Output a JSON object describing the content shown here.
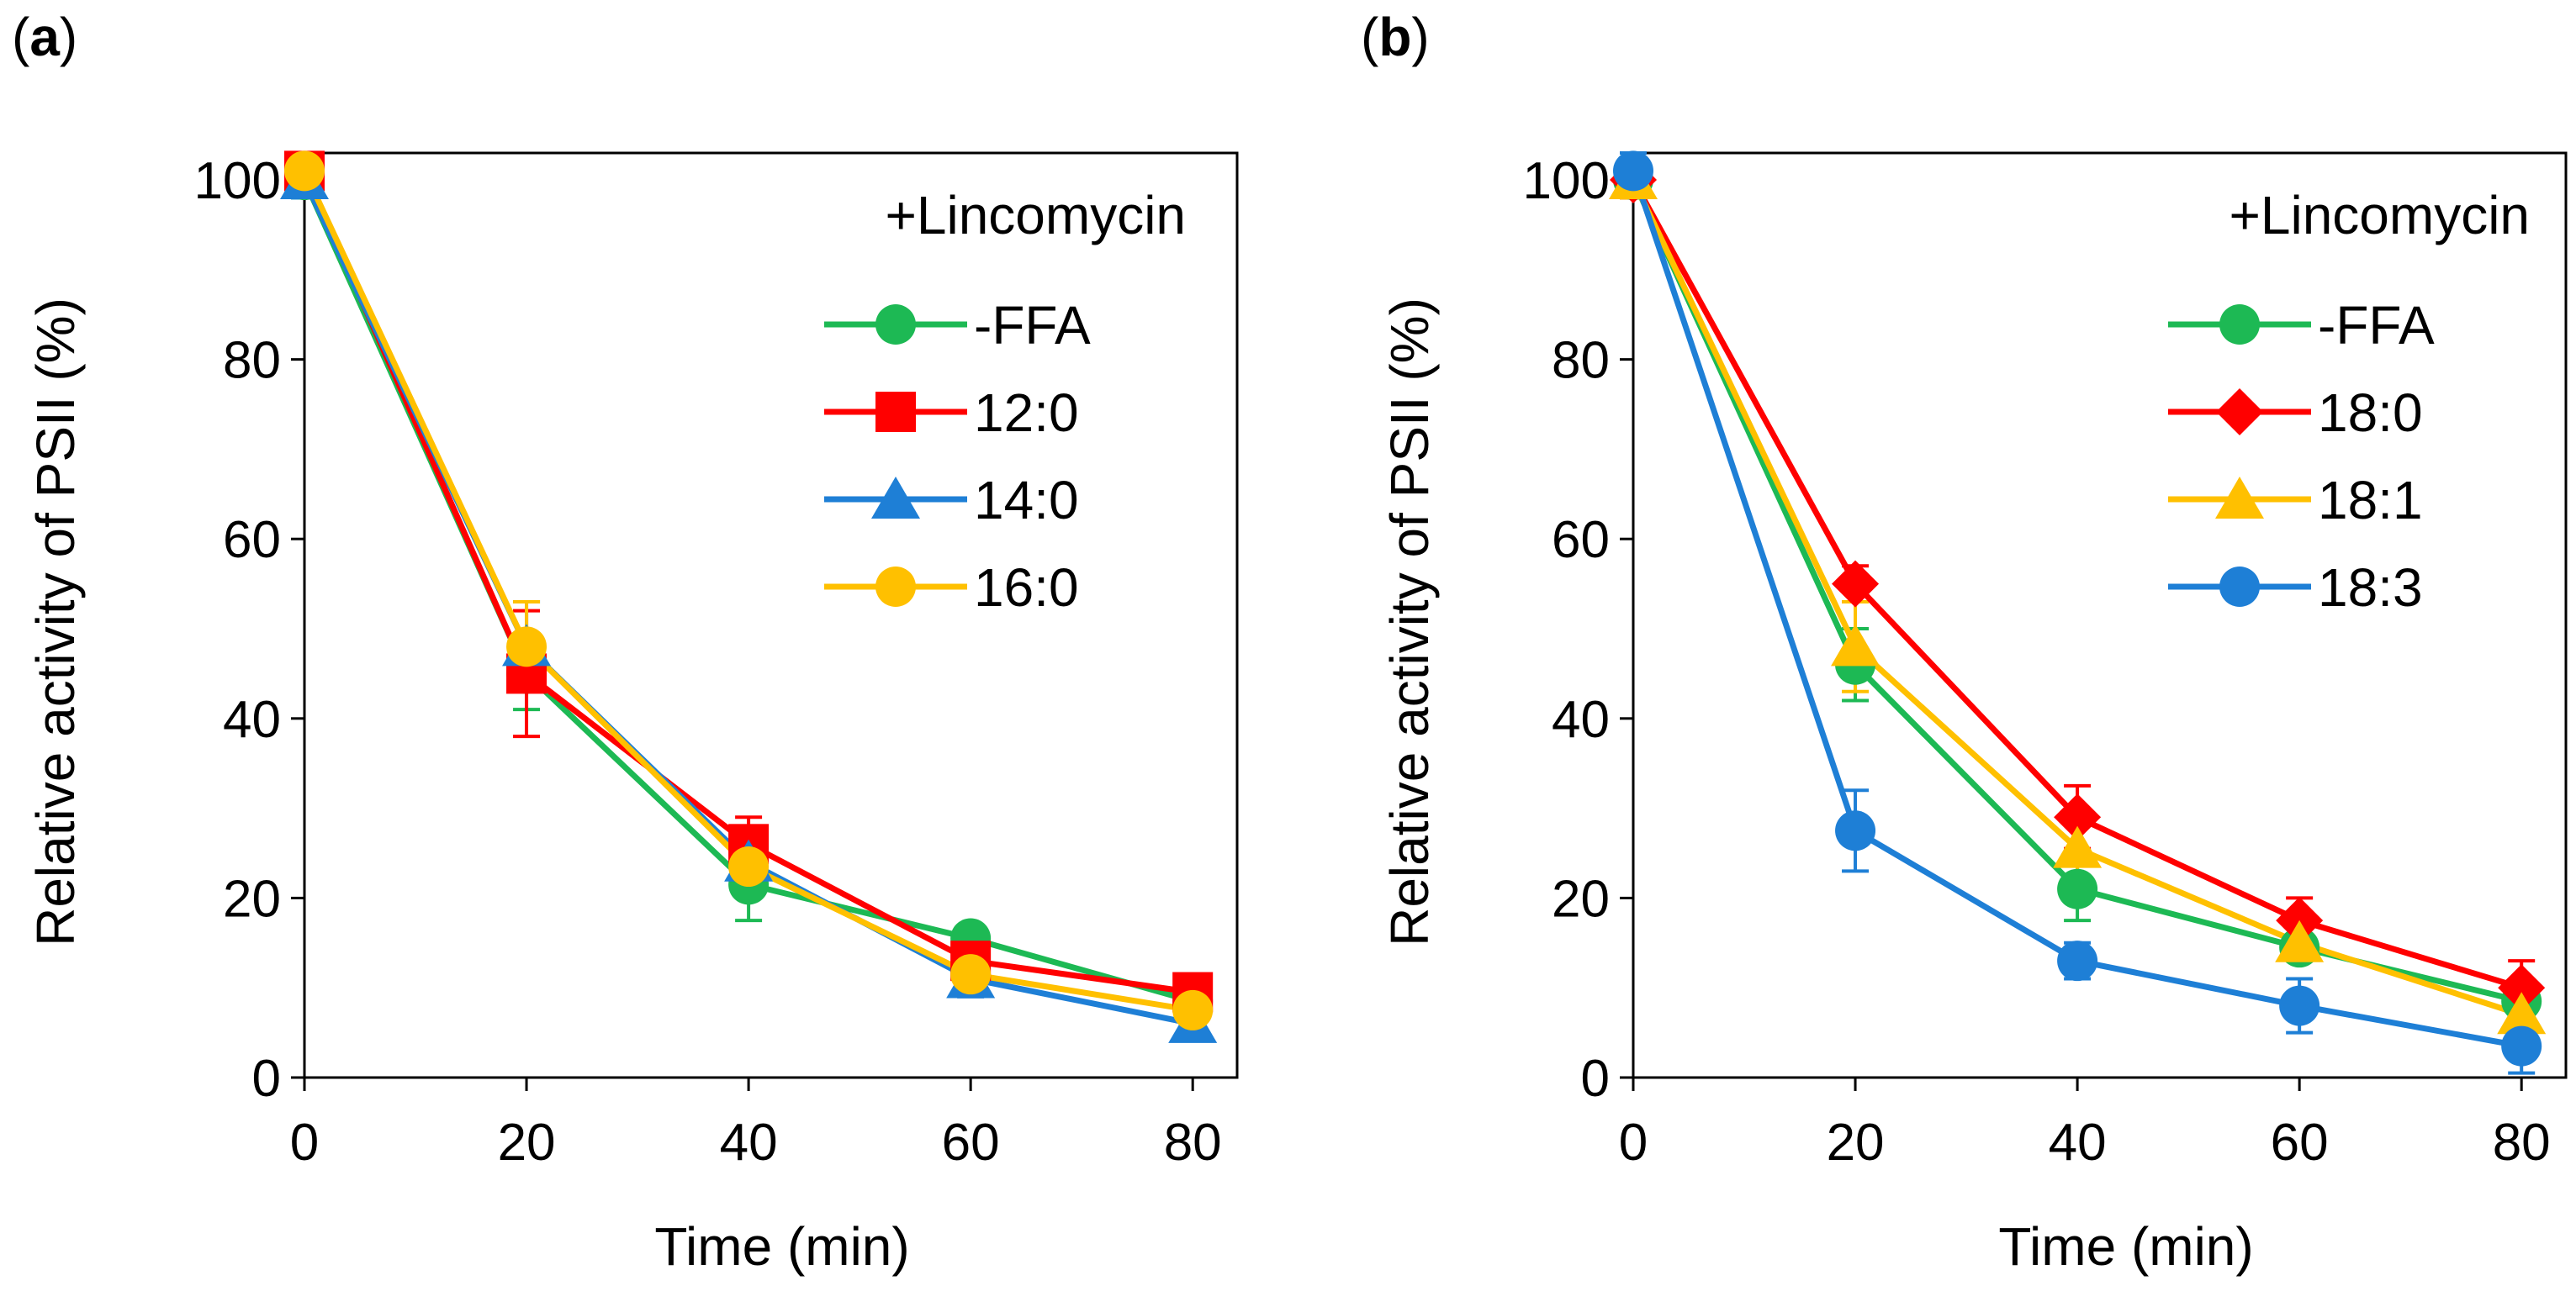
{
  "chart_data": [
    {
      "panel_label": "(a)",
      "panel_letter": "a",
      "type": "line",
      "annotation": "+Lincomycin",
      "xlabel": "Time (min)",
      "ylabel": "Relative activity of PSII (%)",
      "x": [
        0,
        20,
        40,
        60,
        80
      ],
      "x_ticks": [
        "0",
        "20",
        "40",
        "60",
        "80"
      ],
      "y_ticks": [
        "0",
        "20",
        "40",
        "60",
        "80",
        "100"
      ],
      "xlim": [
        0,
        84
      ],
      "ylim": [
        0,
        103
      ],
      "grid": false,
      "legend_position": "top-right",
      "series": [
        {
          "name": "-FFA",
          "color": "#1db954",
          "marker": "circle",
          "values": [
            100,
            45,
            21.5,
            15.5,
            8.5
          ],
          "errors": [
            2,
            4,
            4,
            1.5,
            1
          ]
        },
        {
          "name": "12:0",
          "color": "#ff0000",
          "marker": "square",
          "values": [
            101,
            45,
            26,
            13,
            9.5
          ],
          "errors": [
            2,
            7,
            3,
            2,
            1
          ]
        },
        {
          "name": "14:0",
          "color": "#1e7fd6",
          "marker": "triangle",
          "values": [
            100,
            48,
            24,
            11,
            6
          ],
          "errors": [
            2,
            5,
            3,
            2,
            1
          ]
        },
        {
          "name": "16:0",
          "color": "#ffc000",
          "marker": "circle",
          "values": [
            101,
            48,
            23.5,
            11.5,
            7.5
          ],
          "errors": [
            2,
            5,
            3,
            2,
            1
          ]
        }
      ]
    },
    {
      "panel_label": "(b)",
      "panel_letter": "b",
      "type": "line",
      "annotation": "+Lincomycin",
      "xlabel": "Time (min)",
      "ylabel": "Relative activity of PSII (%)",
      "x": [
        0,
        20,
        40,
        60,
        80
      ],
      "x_ticks": [
        "0",
        "20",
        "40",
        "60",
        "80"
      ],
      "y_ticks": [
        "0",
        "20",
        "40",
        "60",
        "80",
        "100"
      ],
      "xlim": [
        0,
        84
      ],
      "ylim": [
        0,
        103
      ],
      "grid": false,
      "legend_position": "top-right",
      "series": [
        {
          "name": "-FFA",
          "color": "#1db954",
          "marker": "circle",
          "values": [
            100,
            46,
            21,
            14.5,
            8.5
          ],
          "errors": [
            2,
            4,
            3.5,
            1.5,
            1.5
          ]
        },
        {
          "name": "18:0",
          "color": "#ff0000",
          "marker": "diamond",
          "values": [
            100,
            55,
            29,
            17.5,
            10
          ],
          "errors": [
            2,
            2,
            3.5,
            2.5,
            3
          ]
        },
        {
          "name": "18:1",
          "color": "#ffc000",
          "marker": "triangle",
          "values": [
            100,
            48,
            25.5,
            15,
            7
          ],
          "errors": [
            2,
            5,
            3,
            2,
            2
          ]
        },
        {
          "name": "18:3",
          "color": "#1e7fd6",
          "marker": "circle",
          "values": [
            101,
            27.5,
            13,
            8,
            3.5
          ],
          "errors": [
            2,
            4.5,
            2,
            3,
            3
          ]
        }
      ]
    }
  ]
}
